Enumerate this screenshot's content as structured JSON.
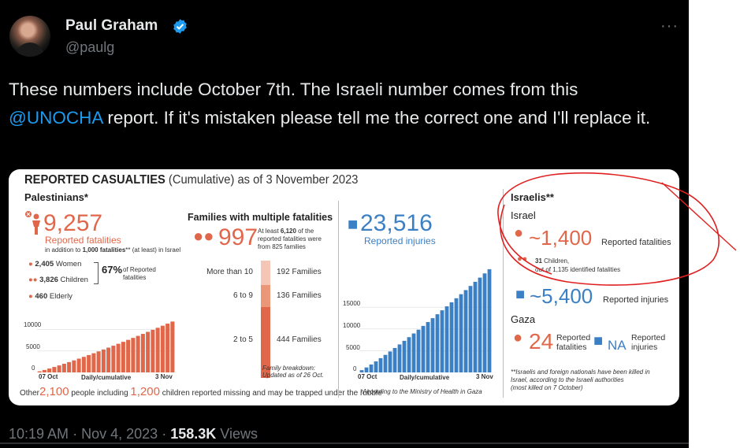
{
  "tweet": {
    "author_name": "Paul Graham",
    "author_handle": "@paulg",
    "more_label": "···",
    "text_before": "These numbers include October 7th. The Israeli number comes from this ",
    "mention": "@UNOCHA",
    "text_after": " report. If it's mistaken please tell me the correct one and I'll replace it.",
    "time": "10:19 AM",
    "date": "Nov 4, 2023",
    "separator": "·",
    "views_count": "158.3K",
    "views_label": "Views"
  },
  "colors": {
    "orange": "#e1674b",
    "blue": "#3b7fc4",
    "twitter_blue": "#1d9bf0",
    "annotation_red": "#e02020"
  },
  "infographic": {
    "title": "REPORTED CASUALTIES",
    "title_sub": "(Cumulative) as of 3 November 2023",
    "palestinians": {
      "heading": "Palestinians*",
      "fatalities": "9,257",
      "fatalities_label": "Reported fatalities",
      "fatalities_note_a": "in addition to ",
      "fatalities_note_b": "1,000 fatalities",
      "fatalities_note_c": "** (at least) in Israel",
      "women": "2,405",
      "women_label": "Women",
      "children": "3,826",
      "children_label": "Children",
      "elderly": "460",
      "elderly_label": "Elderly",
      "pct": "67%",
      "pct_label_1": "of Reported",
      "pct_label_2": "fatalities",
      "chart_y_top": "10000",
      "chart_y_mid": "5000",
      "chart_y_zero": "0",
      "chart_start": "07 Oct",
      "chart_mid_label": "Daily/cumulative",
      "chart_end": "3 Nov",
      "missing_a": "Other",
      "missing_num": "2,100",
      "missing_b": "people including",
      "missing_children": "1,200",
      "missing_c": "children reported missing and  may be trapped under the rubble"
    },
    "families": {
      "heading": "Families with multiple fatalities",
      "total": "997",
      "note_a": "At least ",
      "note_num": "6,120",
      "note_b": " of the",
      "note_c": "reported fatalities were",
      "note_d": "from 825 families",
      "rows": [
        {
          "range": "More than 10",
          "count": "192 Families"
        },
        {
          "range": "6 to 9",
          "count": "136 Families"
        },
        {
          "range": "2 to 5",
          "count": "444 Families"
        }
      ],
      "breakdown_1": "Family breakdown:",
      "breakdown_2": "Updated as of 26 Oct."
    },
    "injuries": {
      "total": "23,516",
      "label": "Reported injuries",
      "chart_y_top": "15000",
      "chart_y_mid": "10000",
      "chart_y_low": "5000",
      "chart_y_zero": "0",
      "chart_start": "07 Oct",
      "chart_mid_label": "Daily/cumulative",
      "chart_end": "3 Nov",
      "footnote": "*According to the Ministry of Health in Gaza"
    },
    "israelis": {
      "heading": "Israelis**",
      "israel_heading": "Israel",
      "fatalities": "~1,400",
      "fatalities_label": "Reported fatalities",
      "children_a": "31",
      "children_b": "Children,",
      "children_note": "out of 1,135 identified fatalities",
      "injuries": "~5,400",
      "injuries_label": "Reported injuries",
      "gaza_heading": "Gaza",
      "gaza_fatalities": "24",
      "gaza_fatalities_label_1": "Reported",
      "gaza_fatalities_label_2": "fatalities",
      "gaza_injuries": "NA",
      "gaza_injuries_label_1": "Reported",
      "gaza_injuries_label_2": "injuries",
      "footnote_1": "**Israelis and foreign nationals have been killed in",
      "footnote_2": "Israel, according to the Israeli authorities",
      "footnote_3": "(most killed on 7 October)"
    }
  }
}
